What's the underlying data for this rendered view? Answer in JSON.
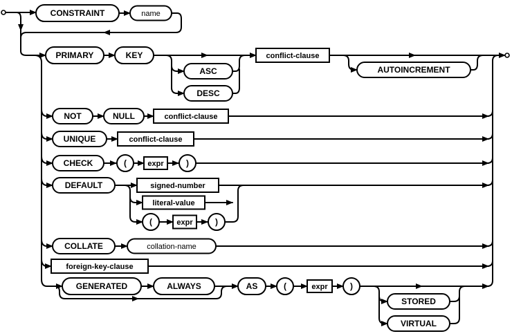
{
  "diagram": {
    "nodes": [
      {
        "label": "CONSTRAINT",
        "kind": "keyword"
      },
      {
        "label": "name",
        "kind": "identifier"
      },
      {
        "label": "PRIMARY",
        "kind": "keyword"
      },
      {
        "label": "KEY",
        "kind": "keyword"
      },
      {
        "label": "ASC",
        "kind": "keyword"
      },
      {
        "label": "DESC",
        "kind": "keyword"
      },
      {
        "label": "conflict-clause",
        "kind": "rule"
      },
      {
        "label": "AUTOINCREMENT",
        "kind": "keyword"
      },
      {
        "label": "NOT",
        "kind": "keyword"
      },
      {
        "label": "NULL",
        "kind": "keyword"
      },
      {
        "label": "conflict-clause",
        "kind": "rule"
      },
      {
        "label": "UNIQUE",
        "kind": "keyword"
      },
      {
        "label": "conflict-clause",
        "kind": "rule"
      },
      {
        "label": "CHECK",
        "kind": "keyword"
      },
      {
        "label": "(",
        "kind": "punct"
      },
      {
        "label": "expr",
        "kind": "rule"
      },
      {
        "label": ")",
        "kind": "punct"
      },
      {
        "label": "DEFAULT",
        "kind": "keyword"
      },
      {
        "label": "signed-number",
        "kind": "rule"
      },
      {
        "label": "literal-value",
        "kind": "rule"
      },
      {
        "label": "(",
        "kind": "punct"
      },
      {
        "label": "expr",
        "kind": "rule"
      },
      {
        "label": ")",
        "kind": "punct"
      },
      {
        "label": "COLLATE",
        "kind": "keyword"
      },
      {
        "label": "collation-name",
        "kind": "identifier"
      },
      {
        "label": "foreign-key-clause",
        "kind": "rule"
      },
      {
        "label": "GENERATED",
        "kind": "keyword"
      },
      {
        "label": "ALWAYS",
        "kind": "keyword"
      },
      {
        "label": "AS",
        "kind": "keyword"
      },
      {
        "label": "(",
        "kind": "punct"
      },
      {
        "label": "expr",
        "kind": "rule"
      },
      {
        "label": ")",
        "kind": "punct"
      },
      {
        "label": "STORED",
        "kind": "keyword"
      },
      {
        "label": "VIRTUAL",
        "kind": "keyword"
      }
    ]
  }
}
